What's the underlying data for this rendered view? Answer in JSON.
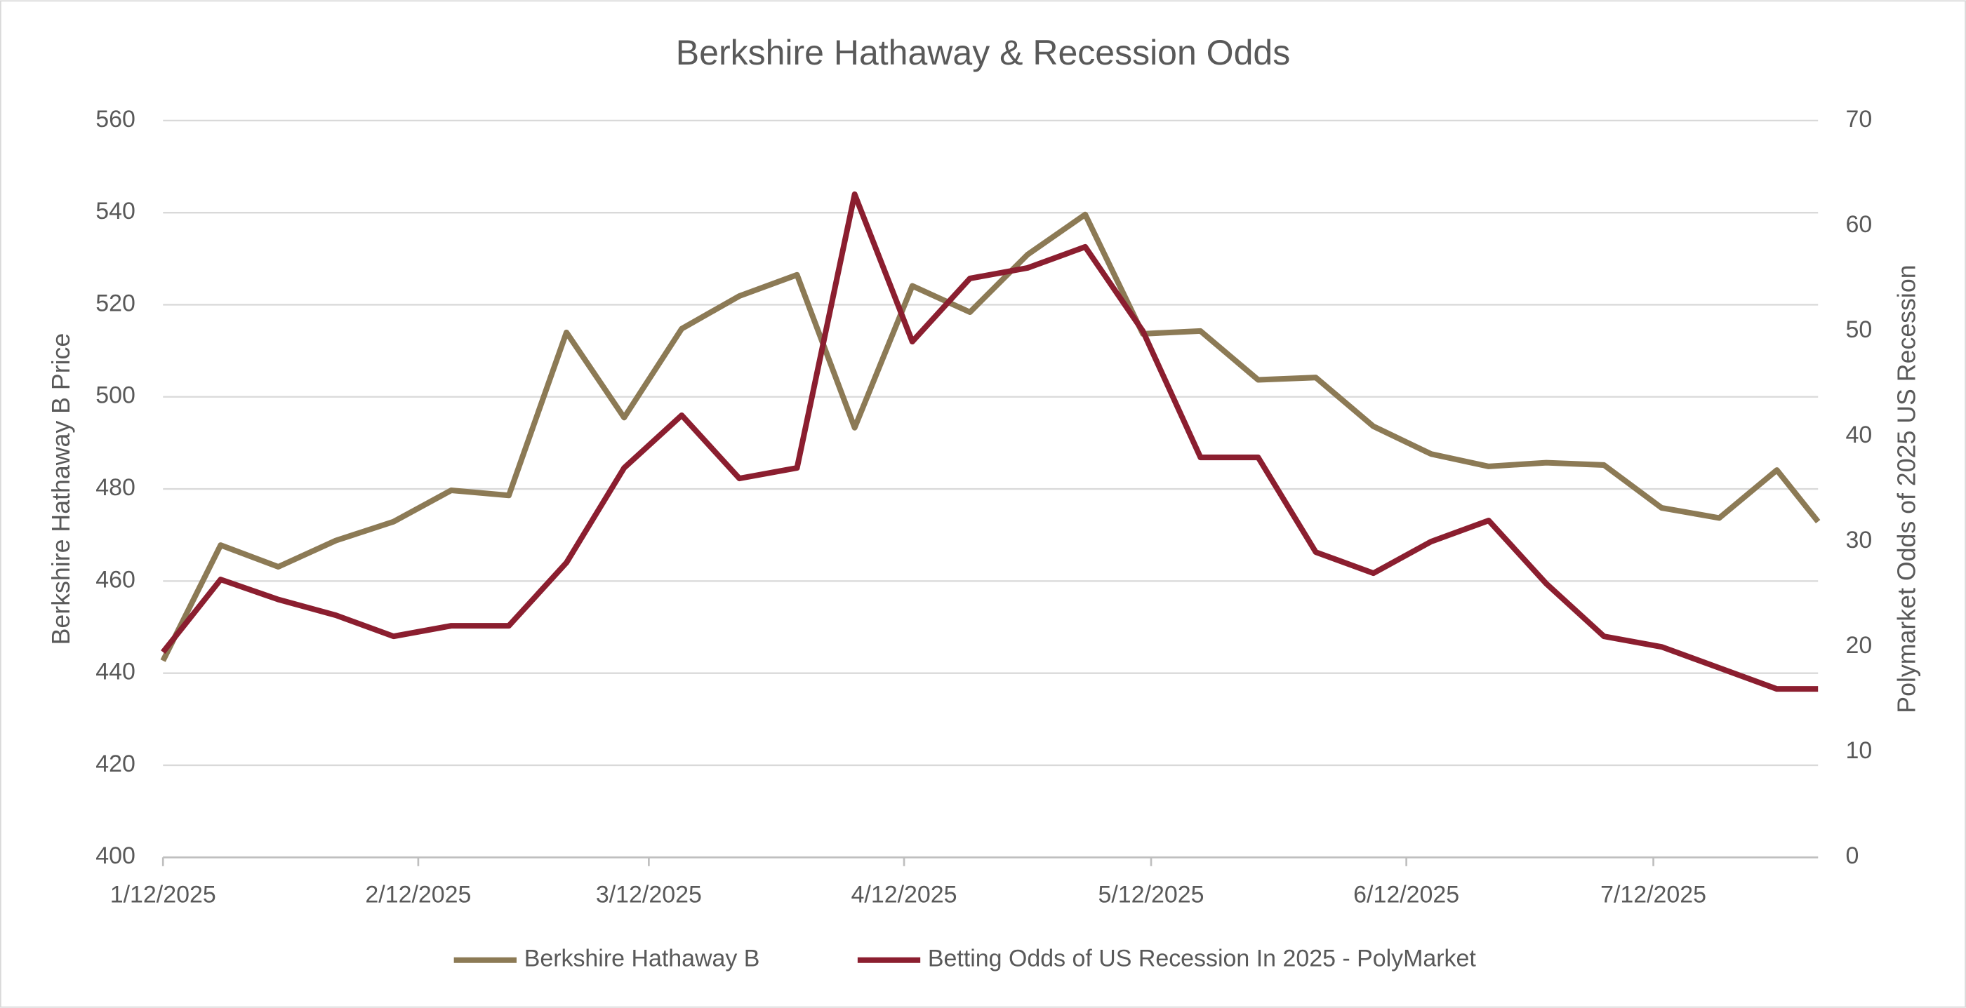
{
  "chart_data": {
    "type": "line",
    "title": "Berkshire Hathaway & Recession Odds",
    "y_label": "Berkshire Hathaway B Price",
    "y2_label": "Polymarket Odds of 2025 US Recession",
    "x": [
      "1/12/2025",
      "1/19/2025",
      "1/26/2025",
      "2/2/2025",
      "2/9/2025",
      "2/16/2025",
      "2/23/2025",
      "3/2/2025",
      "3/9/2025",
      "3/16/2025",
      "3/23/2025",
      "3/30/2025",
      "4/6/2025",
      "4/13/2025",
      "4/20/2025",
      "4/27/2025",
      "5/4/2025",
      "5/11/2025",
      "5/18/2025",
      "5/25/2025",
      "6/1/2025",
      "6/8/2025",
      "6/15/2025",
      "6/22/2025",
      "6/29/2025",
      "7/6/2025",
      "7/13/2025",
      "7/20/2025",
      "7/27/2025",
      "8/1/2025"
    ],
    "xlim": [
      "1/12/2025",
      "8/1/2025"
    ],
    "xticks": [
      "1/12/2025",
      "2/12/2025",
      "3/12/2025",
      "4/12/2025",
      "5/12/2025",
      "6/12/2025",
      "7/12/2025"
    ],
    "series": [
      {
        "name": "Berkshire Hathaway B",
        "color": "#8c7a55",
        "axis": "y",
        "values": [
          442.7,
          467.8,
          463.1,
          468.8,
          472.9,
          479.7,
          478.6,
          514,
          495.5,
          514.8,
          521.9,
          526.5,
          493.3,
          524.1,
          518.4,
          530.9,
          539.6,
          513.7,
          514.3,
          503.7,
          504.2,
          493.6,
          487.6,
          484.9,
          485.7,
          485.2,
          475.9,
          473.7,
          484.1,
          472.9
        ]
      },
      {
        "name": "Betting Odds of US Recession In 2025 - PolyMarket",
        "color": "#8b1e2f",
        "axis": "y2",
        "values": [
          19.5,
          26.4,
          24.5,
          23,
          21,
          22,
          22,
          28,
          37,
          42,
          36,
          37,
          63,
          49,
          55,
          56,
          58,
          50,
          38,
          38,
          29,
          27,
          30,
          32,
          26,
          21,
          20,
          18,
          16,
          16
        ]
      }
    ],
    "ylim": [
      400,
      560
    ],
    "yticks": [
      400,
      420,
      440,
      460,
      480,
      500,
      520,
      540,
      560
    ],
    "y2lim": [
      0,
      70
    ],
    "y2ticks": [
      0,
      10,
      20,
      30,
      40,
      50,
      60,
      70
    ],
    "grid": true,
    "legend": "bottom"
  }
}
